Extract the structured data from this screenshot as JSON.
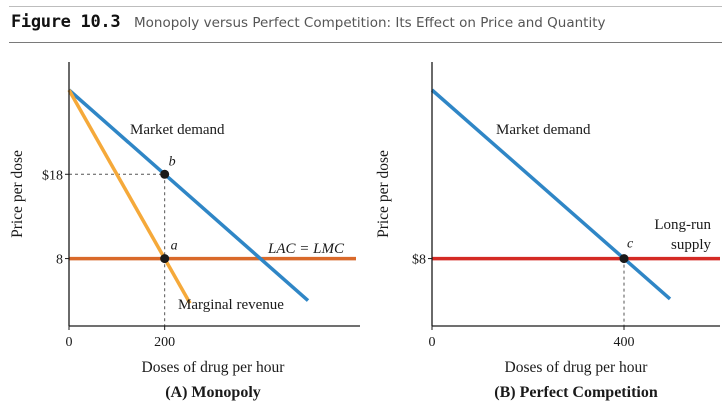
{
  "figure": {
    "label": "Figure 10.3",
    "caption": "Monopoly versus Perfect Competition: Its Effect on Price and Quantity"
  },
  "colors": {
    "demand": "#2f86c6",
    "marginal_revenue": "#f5a93a",
    "cost_line": "#d9692a",
    "supply_line": "#d42a24",
    "axis": "#1a1a1a",
    "guide": "#555555",
    "point": "#1a1a1a"
  },
  "chart_data": [
    {
      "type": "line",
      "title": "(A) Monopoly",
      "xlabel": "Doses of drug per hour",
      "ylabel": "Price per dose",
      "xlim": [
        0,
        600
      ],
      "ylim": [
        0,
        28
      ],
      "x_ticks": [
        {
          "value": 0,
          "label": "0"
        },
        {
          "value": 200,
          "label": "200"
        }
      ],
      "y_ticks": [
        {
          "value": 8,
          "label": "8"
        },
        {
          "value": 18,
          "label": "$18"
        }
      ],
      "series": [
        {
          "name": "Market demand",
          "color_key": "demand",
          "x": [
            0,
            480
          ],
          "y": [
            28,
            4
          ]
        },
        {
          "name": "Marginal revenue",
          "color_key": "marginal_revenue",
          "x": [
            0,
            240
          ],
          "y": [
            28,
            4
          ]
        },
        {
          "name": "LAC = LMC",
          "color_key": "cost_line",
          "x": [
            0,
            600
          ],
          "y": [
            8,
            8
          ]
        }
      ],
      "points": [
        {
          "label": "b",
          "x": 200,
          "y": 18
        },
        {
          "label": "a",
          "x": 200,
          "y": 8
        }
      ],
      "guides": [
        {
          "from": [
            0,
            18
          ],
          "to": [
            200,
            18
          ]
        },
        {
          "from": [
            200,
            18
          ],
          "to": [
            200,
            0
          ]
        }
      ],
      "grid": false
    },
    {
      "type": "line",
      "title": "(B) Perfect Competition",
      "xlabel": "Doses of drug per hour",
      "ylabel": "Price per dose",
      "xlim": [
        0,
        600
      ],
      "ylim": [
        0,
        28
      ],
      "x_ticks": [
        {
          "value": 0,
          "label": "0"
        },
        {
          "value": 400,
          "label": "400"
        }
      ],
      "y_ticks": [
        {
          "value": 8,
          "label": "$8"
        }
      ],
      "series": [
        {
          "name": "Market demand",
          "color_key": "demand",
          "x": [
            0,
            480
          ],
          "y": [
            28,
            4
          ]
        },
        {
          "name": "Long-run supply",
          "color_key": "supply_line",
          "x": [
            0,
            600
          ],
          "y": [
            8,
            8
          ]
        }
      ],
      "points": [
        {
          "label": "c",
          "x": 400,
          "y": 8
        }
      ],
      "guides": [
        {
          "from": [
            400,
            8
          ],
          "to": [
            400,
            0
          ]
        }
      ],
      "grid": false
    }
  ]
}
